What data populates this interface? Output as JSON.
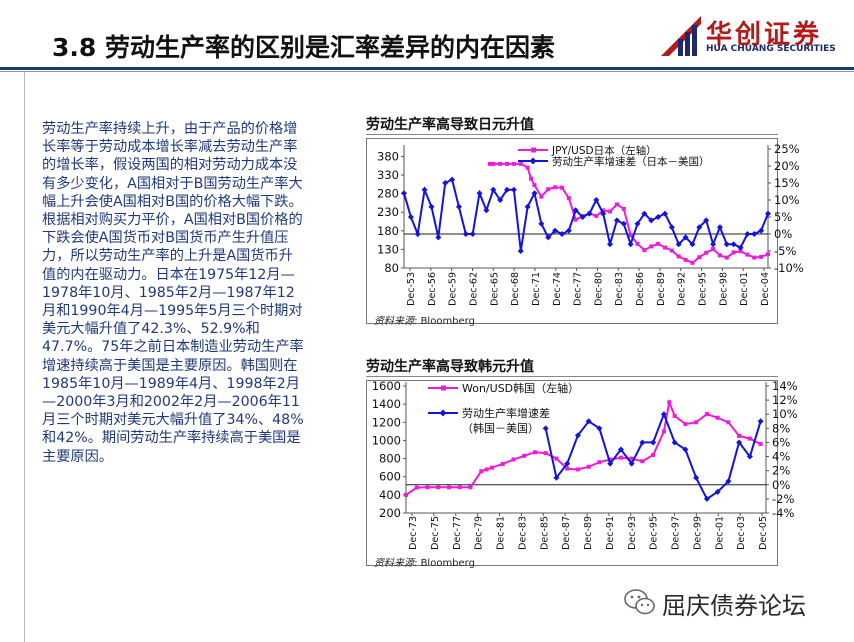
{
  "header": {
    "title": "3.8  劳动生产率的区别是汇率差异的内在因素",
    "logo_cn": "华创证券",
    "logo_en": "HUA CHUANG SECURITIES"
  },
  "body_text": [
    "劳动生产率持续上升，由于产品的价格增长率等于劳动成本增长率减去劳动生产率的增长率，假设两国的相对劳动力成本没有多少变化，A国相对于B国劳动生产率大幅上升会使A国相对B国的价格大幅下跌。根据相对购买力平价，A国相对B国价格的下跌会使A国货币对B国货币产生升值压力，所以劳动生产率的上升是A国货币升值的内在驱动力。日本在1975年12月—1978年10月、1985年2月—1987年12月和1990年4月—1995年5月三个时期对美元大幅升值了42.3%、52.9%和47.7%。75年之前日本制造业劳动生产率增速持续高于美国是主要原因。韩国则在1985年10月—1989年4月、1998年2月—2000年3月和2002年2月—2006年11月三个时期对美元大幅升值了34%、48%和42%。期间劳动生产率持续高于美国是主要原因。"
  ],
  "footer": {
    "brand": "屈庆债券论坛"
  },
  "colors": {
    "series_pink": "#ee1bd8",
    "series_blue": "#1414d8",
    "header_rule": "#1f3a78",
    "body_text": "#1f3a7a",
    "logo_red": "#b31b1b"
  },
  "chart_data": [
    {
      "type": "line",
      "title": "劳动生产率高导致日元升值",
      "source_label": "资料来源:",
      "source_value": "Bloomberg",
      "x_tick_labels": [
        "Dec-53",
        "Dec-56",
        "Dec-59",
        "Dec-62",
        "Dec-65",
        "Dec-68",
        "Dec-71",
        "Dec-74",
        "Dec-77",
        "Dec-80",
        "Dec-83",
        "Dec-86",
        "Dec-89",
        "Dec-92",
        "Dec-95",
        "Dec-98",
        "Dec-01",
        "Dec-04"
      ],
      "x_range": [
        1953,
        2006
      ],
      "y_left": {
        "ticks": [
          80,
          130,
          180,
          230,
          280,
          330,
          380
        ],
        "range": [
          80,
          400
        ]
      },
      "y_right": {
        "ticks": [
          "-10%",
          "-5%",
          "0%",
          "5%",
          "10%",
          "15%",
          "20%",
          "25%"
        ],
        "values": [
          -10,
          -5,
          0,
          5,
          10,
          15,
          20,
          25
        ],
        "range": [
          -10,
          25
        ]
      },
      "zero_line": 0,
      "series": [
        {
          "name": "JPY/USD日本（左轴）",
          "axis": "left",
          "x": [
            1965.5,
            1966,
            1967,
            1968,
            1969,
            1970,
            1971,
            1971.5,
            1972,
            1973,
            1974,
            1975,
            1976,
            1977,
            1978,
            1979,
            1980,
            1981,
            1982,
            1983,
            1984,
            1985,
            1986,
            1987,
            1988,
            1989,
            1990,
            1991,
            1992,
            1993,
            1994,
            1995,
            1996,
            1997,
            1998,
            1999,
            2000,
            2001,
            2002,
            2003,
            2004,
            2005,
            2006
          ],
          "y": [
            360,
            360,
            360,
            360,
            360,
            360,
            350,
            320,
            303,
            272,
            292,
            297,
            296,
            268,
            210,
            219,
            227,
            220,
            235,
            232,
            251,
            239,
            168,
            145,
            128,
            138,
            145,
            135,
            127,
            111,
            102,
            94,
            109,
            121,
            131,
            114,
            108,
            122,
            125,
            116,
            108,
            110,
            117
          ]
        },
        {
          "name": "劳动生产率增速差（日本－美国）",
          "axis": "right",
          "x": [
            1953,
            1954,
            1955,
            1956,
            1957,
            1958,
            1959,
            1960,
            1961,
            1962,
            1963,
            1964,
            1965,
            1966,
            1967,
            1968,
            1969,
            1970,
            1971,
            1972,
            1973,
            1974,
            1975,
            1976,
            1977,
            1978,
            1979,
            1980,
            1981,
            1982,
            1983,
            1984,
            1985,
            1986,
            1987,
            1988,
            1989,
            1990,
            1991,
            1992,
            1993,
            1994,
            1995,
            1996,
            1997,
            1998,
            1999,
            2000,
            2001,
            2002,
            2003,
            2004,
            2005,
            2006
          ],
          "y": [
            12,
            5,
            0,
            13,
            8,
            -1,
            15,
            16,
            8,
            0,
            0,
            12,
            7,
            13,
            10,
            13,
            13,
            -5,
            8,
            12,
            3,
            -1,
            1,
            0,
            1,
            7,
            5,
            6,
            10,
            6,
            -3,
            4,
            3,
            -3,
            3,
            6,
            4,
            5,
            6,
            2,
            -3,
            -1,
            -3,
            2,
            4,
            -3,
            2,
            -3,
            -3,
            -4,
            0,
            0,
            1,
            6
          ]
        }
      ]
    },
    {
      "type": "line",
      "title": "劳动生产率高导致韩元升值",
      "source_label": "资料来源:",
      "source_value": "Bloomberg",
      "x_tick_labels": [
        "Dec-73",
        "Dec-75",
        "Dec-77",
        "Dec-79",
        "Dec-81",
        "Dec-83",
        "Dec-85",
        "Dec-87",
        "Dec-89",
        "Dec-91",
        "Dec-93",
        "Dec-95",
        "Dec-97",
        "Dec-99",
        "Dec-01",
        "Dec-03",
        "Dec-05"
      ],
      "x_range": [
        1973,
        2006.5
      ],
      "y_left": {
        "ticks": [
          200,
          400,
          600,
          800,
          1000,
          1200,
          1400,
          1600
        ],
        "range": [
          200,
          1600
        ]
      },
      "y_right": {
        "ticks": [
          "-4%",
          "-2%",
          "0%",
          "2%",
          "4%",
          "6%",
          "8%",
          "10%",
          "12%",
          "14%"
        ],
        "values": [
          -4,
          -2,
          0,
          2,
          4,
          6,
          8,
          10,
          12,
          14
        ],
        "range": [
          -4,
          14
        ]
      },
      "zero_line": 0,
      "series": [
        {
          "name": "Won/USD韩国（左轴）",
          "axis": "left",
          "x": [
            1973,
            1974,
            1975,
            1976,
            1977,
            1978,
            1979,
            1980,
            1980.5,
            1981,
            1982,
            1983,
            1984,
            1985,
            1986,
            1987,
            1988,
            1989,
            1990,
            1991,
            1992,
            1993,
            1994,
            1995,
            1996,
            1997,
            1997.5,
            1998,
            1999,
            2000,
            2001,
            2002,
            2003,
            2004,
            2005,
            2006
          ],
          "y": [
            400,
            480,
            484,
            484,
            484,
            484,
            484,
            660,
            680,
            700,
            740,
            790,
            830,
            870,
            860,
            800,
            690,
            680,
            710,
            760,
            790,
            810,
            800,
            770,
            840,
            1100,
            1420,
            1270,
            1180,
            1200,
            1290,
            1250,
            1200,
            1050,
            1020,
            960
          ]
        },
        {
          "name": "劳动生产率增速差（韩国－美国）",
          "axis": "right",
          "x": [
            1986,
            1987,
            1988,
            1989,
            1990,
            1991,
            1992,
            1993,
            1994,
            1995,
            1996,
            1997,
            1998,
            1999,
            2000,
            2001,
            2002,
            2003,
            2004,
            2005,
            2006
          ],
          "y": [
            8,
            1,
            3,
            7,
            9,
            8,
            3,
            5,
            3,
            6,
            6,
            10,
            6,
            5,
            1,
            -2,
            -1,
            0.5,
            6,
            4,
            9
          ]
        }
      ]
    }
  ]
}
